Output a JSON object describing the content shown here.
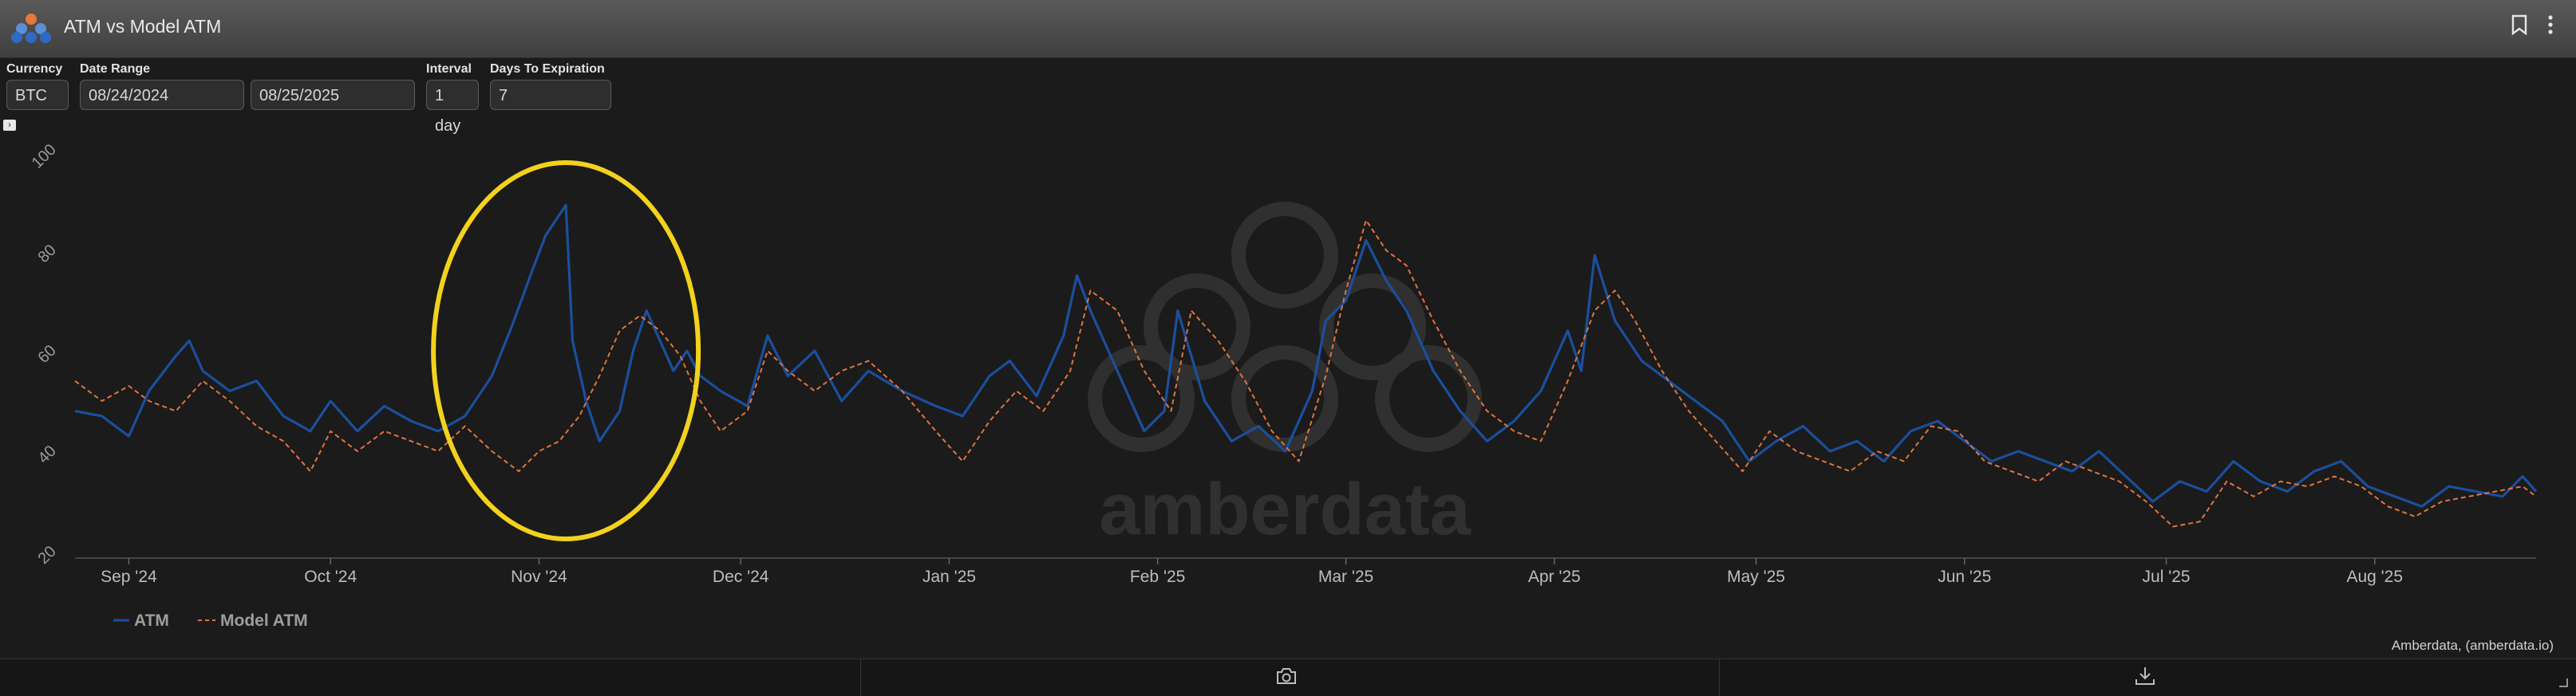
{
  "header": {
    "title": "ATM vs Model ATM"
  },
  "controls": {
    "currency": {
      "label": "Currency",
      "value": "BTC"
    },
    "date_range": {
      "label": "Date Range",
      "start": "08/24/2024",
      "end": "08/25/2025"
    },
    "interval": {
      "label": "Interval",
      "value": "1 day"
    },
    "days_to_expiration": {
      "label": "Days To Expiration",
      "value": "7"
    }
  },
  "watermark": "amberdata",
  "credit": "Amberdata, (amberdata.io)",
  "colors": {
    "atm": "#1a4f9c",
    "model_atm": "#e0743f",
    "highlight": "#f2d21c"
  },
  "chart_data": {
    "type": "line",
    "x_start": "2024-08-24",
    "x_end": "2025-08-25",
    "ylim": [
      20,
      100
    ],
    "y_ticks": [
      20,
      40,
      60,
      80,
      100
    ],
    "x_tick_labels": [
      {
        "label": "Sep '24",
        "date": "2024-09-01"
      },
      {
        "label": "Oct '24",
        "date": "2024-10-01"
      },
      {
        "label": "Nov '24",
        "date": "2024-11-01"
      },
      {
        "label": "Dec '24",
        "date": "2024-12-01"
      },
      {
        "label": "Jan '25",
        "date": "2025-01-01"
      },
      {
        "label": "Feb '25",
        "date": "2025-02-01"
      },
      {
        "label": "Mar '25",
        "date": "2025-03-01"
      },
      {
        "label": "Apr '25",
        "date": "2025-04-01"
      },
      {
        "label": "May '25",
        "date": "2025-05-01"
      },
      {
        "label": "Jun '25",
        "date": "2025-06-01"
      },
      {
        "label": "Jul '25",
        "date": "2025-07-01"
      },
      {
        "label": "Aug '25",
        "date": "2025-08-01"
      }
    ],
    "legend": [
      "ATM",
      "Model ATM"
    ],
    "legend_position": "bottom-left",
    "grid": false,
    "series": [
      {
        "name": "ATM",
        "style": "solid",
        "points": [
          [
            "2024-08-24",
            48
          ],
          [
            "2024-08-28",
            47
          ],
          [
            "2024-09-01",
            43
          ],
          [
            "2024-09-04",
            52
          ],
          [
            "2024-09-08",
            59
          ],
          [
            "2024-09-10",
            62
          ],
          [
            "2024-09-12",
            56
          ],
          [
            "2024-09-16",
            52
          ],
          [
            "2024-09-20",
            54
          ],
          [
            "2024-09-24",
            47
          ],
          [
            "2024-09-28",
            44
          ],
          [
            "2024-10-01",
            50
          ],
          [
            "2024-10-05",
            44
          ],
          [
            "2024-10-09",
            49
          ],
          [
            "2024-10-13",
            46
          ],
          [
            "2024-10-17",
            44
          ],
          [
            "2024-10-21",
            47
          ],
          [
            "2024-10-25",
            55
          ],
          [
            "2024-10-28",
            65
          ],
          [
            "2024-10-31",
            76
          ],
          [
            "2024-11-02",
            83
          ],
          [
            "2024-11-05",
            89
          ],
          [
            "2024-11-06",
            62
          ],
          [
            "2024-11-08",
            50
          ],
          [
            "2024-11-10",
            42
          ],
          [
            "2024-11-13",
            48
          ],
          [
            "2024-11-15",
            60
          ],
          [
            "2024-11-17",
            68
          ],
          [
            "2024-11-19",
            62
          ],
          [
            "2024-11-21",
            56
          ],
          [
            "2024-11-23",
            60
          ],
          [
            "2024-11-25",
            55
          ],
          [
            "2024-11-28",
            52
          ],
          [
            "2024-12-02",
            49
          ],
          [
            "2024-12-05",
            63
          ],
          [
            "2024-12-08",
            55
          ],
          [
            "2024-12-12",
            60
          ],
          [
            "2024-12-16",
            50
          ],
          [
            "2024-12-20",
            56
          ],
          [
            "2024-12-25",
            52
          ],
          [
            "2024-12-30",
            49
          ],
          [
            "2025-01-03",
            47
          ],
          [
            "2025-01-07",
            55
          ],
          [
            "2025-01-10",
            58
          ],
          [
            "2025-01-14",
            51
          ],
          [
            "2025-01-18",
            63
          ],
          [
            "2025-01-20",
            75
          ],
          [
            "2025-01-22",
            68
          ],
          [
            "2025-01-26",
            56
          ],
          [
            "2025-01-30",
            44
          ],
          [
            "2025-02-02",
            48
          ],
          [
            "2025-02-04",
            68
          ],
          [
            "2025-02-08",
            50
          ],
          [
            "2025-02-12",
            42
          ],
          [
            "2025-02-16",
            45
          ],
          [
            "2025-02-20",
            40
          ],
          [
            "2025-02-24",
            52
          ],
          [
            "2025-02-26",
            66
          ],
          [
            "2025-03-01",
            70
          ],
          [
            "2025-03-04",
            82
          ],
          [
            "2025-03-07",
            74
          ],
          [
            "2025-03-10",
            68
          ],
          [
            "2025-03-14",
            56
          ],
          [
            "2025-03-18",
            48
          ],
          [
            "2025-03-22",
            42
          ],
          [
            "2025-03-26",
            46
          ],
          [
            "2025-03-30",
            52
          ],
          [
            "2025-04-03",
            64
          ],
          [
            "2025-04-05",
            56
          ],
          [
            "2025-04-07",
            79
          ],
          [
            "2025-04-10",
            66
          ],
          [
            "2025-04-14",
            58
          ],
          [
            "2025-04-18",
            54
          ],
          [
            "2025-04-22",
            50
          ],
          [
            "2025-04-26",
            46
          ],
          [
            "2025-04-30",
            38
          ],
          [
            "2025-05-04",
            42
          ],
          [
            "2025-05-08",
            45
          ],
          [
            "2025-05-12",
            40
          ],
          [
            "2025-05-16",
            42
          ],
          [
            "2025-05-20",
            38
          ],
          [
            "2025-05-24",
            44
          ],
          [
            "2025-05-28",
            46
          ],
          [
            "2025-06-01",
            42
          ],
          [
            "2025-06-05",
            38
          ],
          [
            "2025-06-09",
            40
          ],
          [
            "2025-06-13",
            38
          ],
          [
            "2025-06-17",
            36
          ],
          [
            "2025-06-21",
            40
          ],
          [
            "2025-06-25",
            35
          ],
          [
            "2025-06-29",
            30
          ],
          [
            "2025-07-03",
            34
          ],
          [
            "2025-07-07",
            32
          ],
          [
            "2025-07-11",
            38
          ],
          [
            "2025-07-15",
            34
          ],
          [
            "2025-07-19",
            32
          ],
          [
            "2025-07-23",
            36
          ],
          [
            "2025-07-27",
            38
          ],
          [
            "2025-07-31",
            33
          ],
          [
            "2025-08-04",
            31
          ],
          [
            "2025-08-08",
            29
          ],
          [
            "2025-08-12",
            33
          ],
          [
            "2025-08-16",
            32
          ],
          [
            "2025-08-20",
            31
          ],
          [
            "2025-08-23",
            35
          ],
          [
            "2025-08-25",
            32
          ]
        ]
      },
      {
        "name": "Model ATM",
        "style": "dashed",
        "points": [
          [
            "2024-08-24",
            54
          ],
          [
            "2024-08-28",
            50
          ],
          [
            "2024-09-01",
            53
          ],
          [
            "2024-09-04",
            50
          ],
          [
            "2024-09-08",
            48
          ],
          [
            "2024-09-12",
            54
          ],
          [
            "2024-09-16",
            50
          ],
          [
            "2024-09-20",
            45
          ],
          [
            "2024-09-24",
            42
          ],
          [
            "2024-09-28",
            36
          ],
          [
            "2024-10-01",
            44
          ],
          [
            "2024-10-05",
            40
          ],
          [
            "2024-10-09",
            44
          ],
          [
            "2024-10-13",
            42
          ],
          [
            "2024-10-17",
            40
          ],
          [
            "2024-10-21",
            45
          ],
          [
            "2024-10-25",
            40
          ],
          [
            "2024-10-29",
            36
          ],
          [
            "2024-11-01",
            40
          ],
          [
            "2024-11-04",
            42
          ],
          [
            "2024-11-07",
            47
          ],
          [
            "2024-11-10",
            55
          ],
          [
            "2024-11-13",
            64
          ],
          [
            "2024-11-16",
            67
          ],
          [
            "2024-11-19",
            64
          ],
          [
            "2024-11-22",
            59
          ],
          [
            "2024-11-25",
            50
          ],
          [
            "2024-11-28",
            44
          ],
          [
            "2024-12-02",
            48
          ],
          [
            "2024-12-05",
            60
          ],
          [
            "2024-12-08",
            56
          ],
          [
            "2024-12-12",
            52
          ],
          [
            "2024-12-16",
            56
          ],
          [
            "2024-12-20",
            58
          ],
          [
            "2024-12-25",
            52
          ],
          [
            "2024-12-30",
            44
          ],
          [
            "2025-01-03",
            38
          ],
          [
            "2025-01-07",
            46
          ],
          [
            "2025-01-11",
            52
          ],
          [
            "2025-01-15",
            48
          ],
          [
            "2025-01-19",
            56
          ],
          [
            "2025-01-22",
            72
          ],
          [
            "2025-01-26",
            68
          ],
          [
            "2025-01-30",
            56
          ],
          [
            "2025-02-03",
            48
          ],
          [
            "2025-02-06",
            68
          ],
          [
            "2025-02-10",
            62
          ],
          [
            "2025-02-14",
            54
          ],
          [
            "2025-02-18",
            44
          ],
          [
            "2025-02-22",
            38
          ],
          [
            "2025-02-26",
            55
          ],
          [
            "2025-03-01",
            72
          ],
          [
            "2025-03-04",
            86
          ],
          [
            "2025-03-07",
            80
          ],
          [
            "2025-03-10",
            77
          ],
          [
            "2025-03-14",
            66
          ],
          [
            "2025-03-18",
            56
          ],
          [
            "2025-03-22",
            48
          ],
          [
            "2025-03-26",
            44
          ],
          [
            "2025-03-30",
            42
          ],
          [
            "2025-04-03",
            54
          ],
          [
            "2025-04-07",
            68
          ],
          [
            "2025-04-10",
            72
          ],
          [
            "2025-04-13",
            66
          ],
          [
            "2025-04-17",
            56
          ],
          [
            "2025-04-21",
            48
          ],
          [
            "2025-04-25",
            42
          ],
          [
            "2025-04-29",
            36
          ],
          [
            "2025-05-03",
            44
          ],
          [
            "2025-05-07",
            40
          ],
          [
            "2025-05-11",
            38
          ],
          [
            "2025-05-15",
            36
          ],
          [
            "2025-05-19",
            40
          ],
          [
            "2025-05-23",
            38
          ],
          [
            "2025-05-27",
            45
          ],
          [
            "2025-05-31",
            44
          ],
          [
            "2025-06-04",
            38
          ],
          [
            "2025-06-08",
            36
          ],
          [
            "2025-06-12",
            34
          ],
          [
            "2025-06-16",
            38
          ],
          [
            "2025-06-20",
            36
          ],
          [
            "2025-06-24",
            34
          ],
          [
            "2025-06-28",
            30
          ],
          [
            "2025-07-02",
            25
          ],
          [
            "2025-07-06",
            26
          ],
          [
            "2025-07-10",
            34
          ],
          [
            "2025-07-14",
            31
          ],
          [
            "2025-07-18",
            34
          ],
          [
            "2025-07-22",
            33
          ],
          [
            "2025-07-26",
            35
          ],
          [
            "2025-07-30",
            33
          ],
          [
            "2025-08-03",
            29
          ],
          [
            "2025-08-07",
            27
          ],
          [
            "2025-08-11",
            30
          ],
          [
            "2025-08-15",
            31
          ],
          [
            "2025-08-19",
            32
          ],
          [
            "2025-08-23",
            33
          ],
          [
            "2025-08-25",
            31
          ]
        ]
      }
    ],
    "annotation": {
      "shape": "ellipse",
      "center_date": "2024-11-05",
      "center_value": 60
    }
  }
}
